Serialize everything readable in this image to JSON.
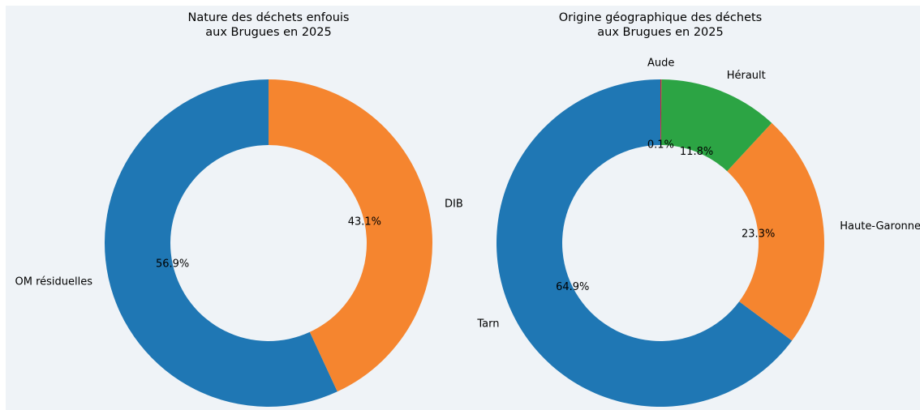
{
  "chart_data": [
    {
      "type": "donut",
      "title": [
        "Nature des déchets enfouis",
        "aux Brugues en 2025"
      ],
      "categories": [
        "OM résiduelles",
        "DIB"
      ],
      "values": [
        56.9,
        43.1
      ],
      "value_labels": [
        "56.9%",
        "43.1%"
      ],
      "colors": [
        "#1f77b4",
        "#f5852f"
      ]
    },
    {
      "type": "donut",
      "title": [
        "Origine géographique des déchets",
        "aux Brugues en 2025"
      ],
      "categories": [
        "Tarn",
        "Haute-Garonne",
        "Hérault",
        "Aude"
      ],
      "values": [
        64.9,
        23.3,
        11.8,
        0.1
      ],
      "value_labels": [
        "64.9%",
        "23.3%",
        "11.8%",
        "0.1%"
      ],
      "colors": [
        "#1f77b4",
        "#f5852f",
        "#2ca444",
        "#d62728"
      ]
    }
  ]
}
